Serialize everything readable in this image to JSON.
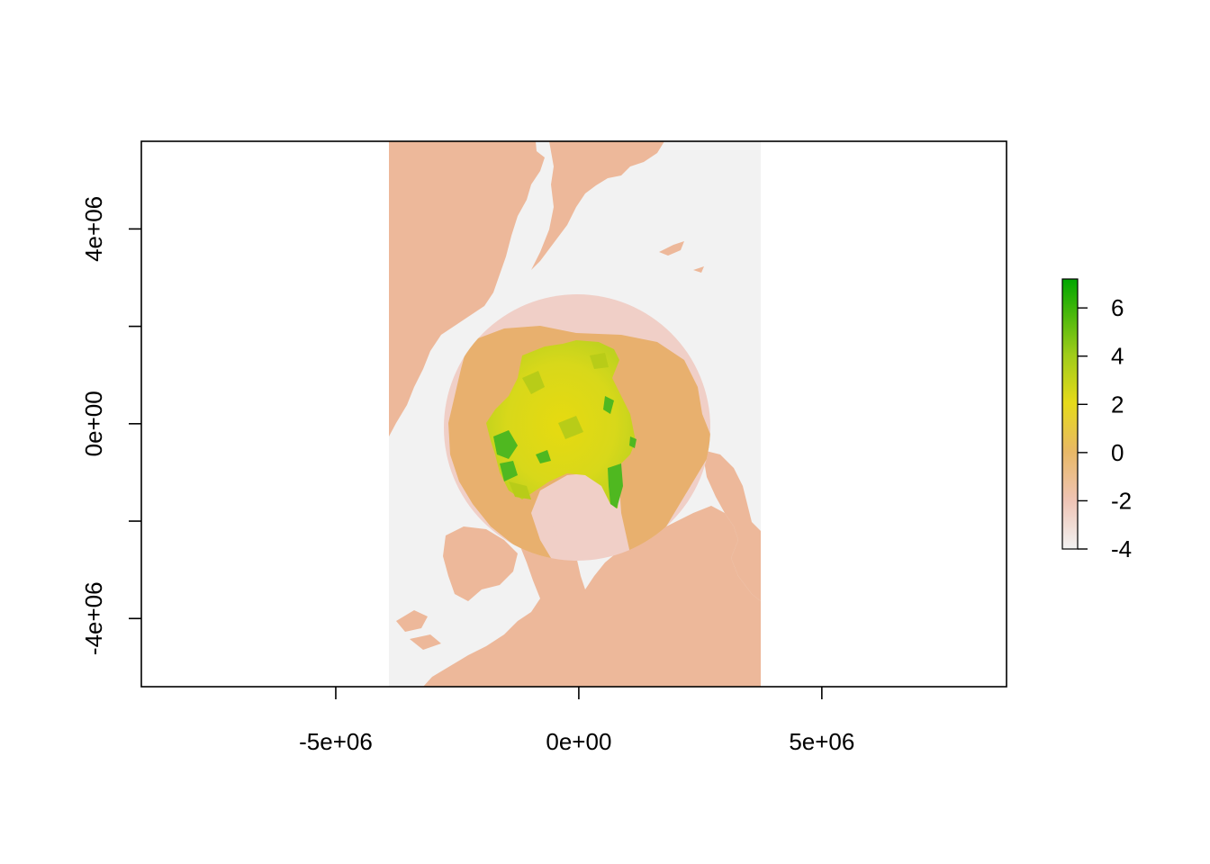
{
  "chart_data": {
    "type": "raster-map",
    "title": "",
    "xlabel": "",
    "ylabel": "",
    "x_ticks": [
      {
        "value": -5000000,
        "label": "-5e+06"
      },
      {
        "value": 0,
        "label": "0e+00"
      },
      {
        "value": 5000000,
        "label": "5e+06"
      }
    ],
    "y_ticks": [
      {
        "value": 4000000,
        "label": "4e+06"
      },
      {
        "value": 2000000,
        "label": ""
      },
      {
        "value": 0,
        "label": "0e+00"
      },
      {
        "value": -2000000,
        "label": ""
      },
      {
        "value": -4000000,
        "label": "-4e+06"
      }
    ],
    "xlim": [
      -9000000,
      8800000
    ],
    "ylim": [
      -5400000,
      5800000
    ],
    "raster_extent_x": [
      -3850000,
      3750000
    ],
    "polar_disc": {
      "center": [
        0,
        0
      ],
      "radius": 2750000
    },
    "legend": {
      "placement": "right",
      "range": [
        -4,
        7.2
      ],
      "ticks": [
        {
          "value": 6,
          "label": "6"
        },
        {
          "value": 4,
          "label": "4"
        },
        {
          "value": 2,
          "label": "2"
        },
        {
          "value": 0,
          "label": "0"
        },
        {
          "value": -2,
          "label": "-2"
        },
        {
          "value": -4,
          "label": "-4"
        }
      ],
      "color_stops": [
        {
          "value": -4,
          "color": "#F2F2F2"
        },
        {
          "value": -2,
          "color": "#EFC4B5"
        },
        {
          "value": 0,
          "color": "#E8B866"
        },
        {
          "value": 2,
          "color": "#E6DA1A"
        },
        {
          "value": 4,
          "color": "#9FCC1A"
        },
        {
          "value": 7.2,
          "color": "#00A600"
        }
      ]
    },
    "colors": {
      "ocean": "#F2F2F2",
      "land": "#EDB89A",
      "polar_disc": "#F0CFC7",
      "arctic_land": "#E8B06E",
      "sea_ice_low": "#E6DA1A",
      "sea_ice_high": "#00A600"
    }
  }
}
